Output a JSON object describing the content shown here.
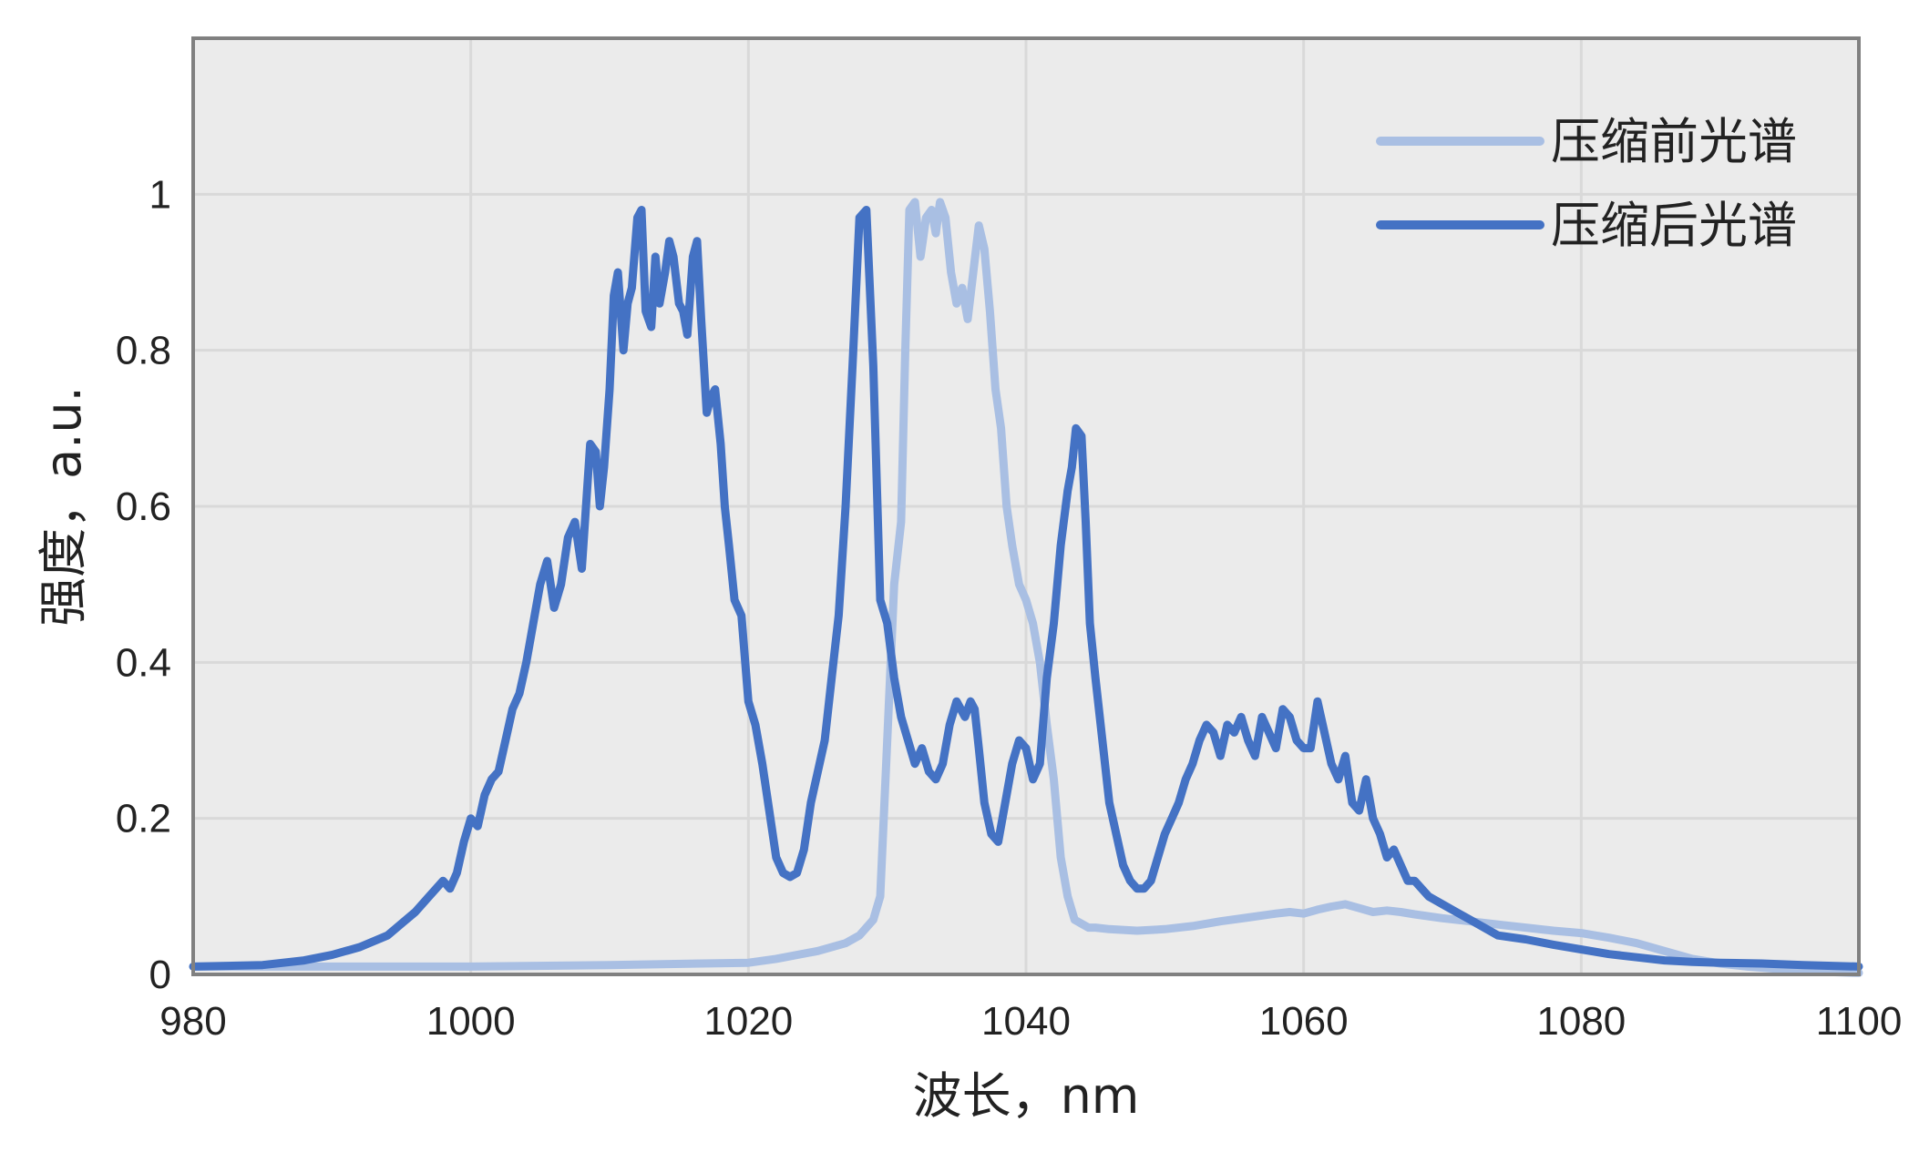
{
  "chart_data": {
    "type": "line",
    "title": "",
    "xlabel": "波长，nm",
    "ylabel": "强度，a.u.",
    "xlim": [
      980,
      1100
    ],
    "ylim": [
      0,
      1.2
    ],
    "xticks": [
      980,
      1000,
      1020,
      1040,
      1060,
      1080,
      1100
    ],
    "yticks": [
      0,
      0.2,
      0.4,
      0.6,
      0.8,
      1
    ],
    "xtick_labels": [
      "980",
      "1000",
      "1020",
      "1040",
      "1060",
      "1080",
      "1100"
    ],
    "ytick_labels": [
      "0",
      "0.2",
      "0.4",
      "0.6",
      "0.8",
      "1"
    ],
    "grid": true,
    "background": "#ebebeb",
    "legend_position": "top-right",
    "series": [
      {
        "name": "压缩前光谱",
        "color": "#a9bfe3",
        "x": [
          980,
          990,
          1000,
          1010,
          1020,
          1022,
          1025,
          1027,
          1028,
          1029,
          1029.5,
          1030,
          1030.5,
          1031,
          1031.3,
          1031.6,
          1032,
          1032.4,
          1032.8,
          1033.2,
          1033.5,
          1033.8,
          1034.2,
          1034.6,
          1035,
          1035.4,
          1035.8,
          1036.2,
          1036.6,
          1037,
          1037.4,
          1037.8,
          1038.2,
          1038.6,
          1039,
          1039.5,
          1040,
          1040.5,
          1041,
          1041.5,
          1042,
          1042.5,
          1043,
          1043.5,
          1044,
          1044.5,
          1045,
          1046,
          1048,
          1050,
          1052,
          1054,
          1056,
          1058,
          1059,
          1060,
          1061,
          1062,
          1063,
          1064,
          1065,
          1066,
          1067,
          1068,
          1070,
          1072,
          1074,
          1076,
          1078,
          1080,
          1081,
          1082,
          1084,
          1086,
          1088,
          1090,
          1092,
          1095,
          1098,
          1100
        ],
        "values": [
          0.01,
          0.01,
          0.01,
          0.012,
          0.015,
          0.02,
          0.03,
          0.04,
          0.05,
          0.07,
          0.1,
          0.3,
          0.5,
          0.58,
          0.8,
          0.98,
          0.99,
          0.92,
          0.97,
          0.98,
          0.95,
          0.99,
          0.97,
          0.9,
          0.86,
          0.88,
          0.84,
          0.9,
          0.96,
          0.93,
          0.85,
          0.75,
          0.7,
          0.6,
          0.55,
          0.5,
          0.48,
          0.45,
          0.4,
          0.32,
          0.25,
          0.15,
          0.1,
          0.07,
          0.065,
          0.06,
          0.06,
          0.058,
          0.056,
          0.058,
          0.062,
          0.068,
          0.073,
          0.078,
          0.08,
          0.078,
          0.083,
          0.087,
          0.09,
          0.085,
          0.08,
          0.082,
          0.08,
          0.077,
          0.072,
          0.068,
          0.064,
          0.06,
          0.056,
          0.053,
          0.05,
          0.047,
          0.04,
          0.03,
          0.02,
          0.014,
          0.01,
          0.006,
          0.003,
          0.002
        ]
      },
      {
        "name": "压缩后光谱",
        "color": "#4472c4",
        "x": [
          980,
          985,
          988,
          990,
          992,
          994,
          995,
          996,
          997,
          997.5,
          998,
          998.5,
          999,
          999.5,
          1000,
          1000.5,
          1001,
          1001.5,
          1002,
          1002.5,
          1003,
          1003.5,
          1004,
          1004.5,
          1005,
          1005.5,
          1006,
          1006.5,
          1007,
          1007.5,
          1008,
          1008.3,
          1008.6,
          1009,
          1009.3,
          1009.6,
          1010,
          1010.3,
          1010.6,
          1011,
          1011.3,
          1011.6,
          1012,
          1012.3,
          1012.6,
          1013,
          1013.3,
          1013.6,
          1014,
          1014.3,
          1014.6,
          1015,
          1015.3,
          1015.6,
          1016,
          1016.3,
          1016.6,
          1017,
          1017.3,
          1017.6,
          1018,
          1018.3,
          1018.6,
          1019,
          1019.5,
          1020,
          1020.5,
          1021,
          1022,
          1022.5,
          1023,
          1023.5,
          1024,
          1024.5,
          1025,
          1025.5,
          1026,
          1026.5,
          1027,
          1027.5,
          1028,
          1028.5,
          1029,
          1029.5,
          1030,
          1030.5,
          1031,
          1031.5,
          1032,
          1032.5,
          1033,
          1033.5,
          1034,
          1034.5,
          1035,
          1035.3,
          1035.6,
          1036,
          1036.3,
          1036.6,
          1037,
          1037.5,
          1038,
          1038.5,
          1039,
          1039.5,
          1040,
          1040.5,
          1041,
          1041.5,
          1042,
          1042.5,
          1043,
          1043.3,
          1043.6,
          1044,
          1044.3,
          1044.6,
          1045,
          1045.5,
          1046,
          1046.5,
          1047,
          1047.5,
          1048,
          1048.5,
          1049,
          1049.5,
          1050,
          1050.5,
          1051,
          1051.5,
          1052,
          1052.5,
          1053,
          1053.5,
          1054,
          1054.5,
          1055,
          1055.5,
          1056,
          1056.5,
          1057,
          1057.5,
          1058,
          1058.5,
          1059,
          1059.5,
          1060,
          1060.5,
          1061,
          1061.5,
          1062,
          1062.5,
          1063,
          1063.5,
          1064,
          1064.5,
          1065,
          1065.5,
          1066,
          1066.5,
          1067,
          1067.5,
          1068,
          1069,
          1070,
          1071,
          1072,
          1073,
          1074,
          1076,
          1078,
          1080,
          1082,
          1084,
          1086,
          1088,
          1090,
          1093,
          1096,
          1100
        ],
        "values": [
          0.01,
          0.012,
          0.018,
          0.025,
          0.035,
          0.05,
          0.065,
          0.08,
          0.1,
          0.11,
          0.12,
          0.11,
          0.13,
          0.17,
          0.2,
          0.19,
          0.23,
          0.25,
          0.26,
          0.3,
          0.34,
          0.36,
          0.4,
          0.45,
          0.5,
          0.53,
          0.47,
          0.5,
          0.56,
          0.58,
          0.52,
          0.6,
          0.68,
          0.67,
          0.6,
          0.65,
          0.75,
          0.87,
          0.9,
          0.8,
          0.86,
          0.88,
          0.97,
          0.98,
          0.85,
          0.83,
          0.92,
          0.86,
          0.9,
          0.94,
          0.92,
          0.86,
          0.85,
          0.82,
          0.92,
          0.94,
          0.84,
          0.72,
          0.74,
          0.75,
          0.68,
          0.6,
          0.55,
          0.48,
          0.46,
          0.35,
          0.32,
          0.27,
          0.15,
          0.13,
          0.125,
          0.13,
          0.16,
          0.22,
          0.26,
          0.3,
          0.38,
          0.46,
          0.6,
          0.78,
          0.97,
          0.98,
          0.78,
          0.48,
          0.45,
          0.38,
          0.33,
          0.3,
          0.27,
          0.29,
          0.26,
          0.25,
          0.27,
          0.32,
          0.35,
          0.34,
          0.33,
          0.35,
          0.34,
          0.29,
          0.22,
          0.18,
          0.17,
          0.22,
          0.27,
          0.3,
          0.29,
          0.25,
          0.27,
          0.38,
          0.45,
          0.55,
          0.62,
          0.65,
          0.7,
          0.69,
          0.58,
          0.45,
          0.38,
          0.3,
          0.22,
          0.18,
          0.14,
          0.12,
          0.11,
          0.11,
          0.12,
          0.15,
          0.18,
          0.2,
          0.22,
          0.25,
          0.27,
          0.3,
          0.32,
          0.31,
          0.28,
          0.32,
          0.31,
          0.33,
          0.3,
          0.28,
          0.33,
          0.31,
          0.29,
          0.34,
          0.33,
          0.3,
          0.29,
          0.29,
          0.35,
          0.31,
          0.27,
          0.25,
          0.28,
          0.22,
          0.21,
          0.25,
          0.2,
          0.18,
          0.15,
          0.16,
          0.14,
          0.12,
          0.12,
          0.1,
          0.09,
          0.08,
          0.07,
          0.06,
          0.05,
          0.045,
          0.038,
          0.032,
          0.026,
          0.022,
          0.018,
          0.016,
          0.015,
          0.014,
          0.012,
          0.01
        ]
      }
    ]
  }
}
